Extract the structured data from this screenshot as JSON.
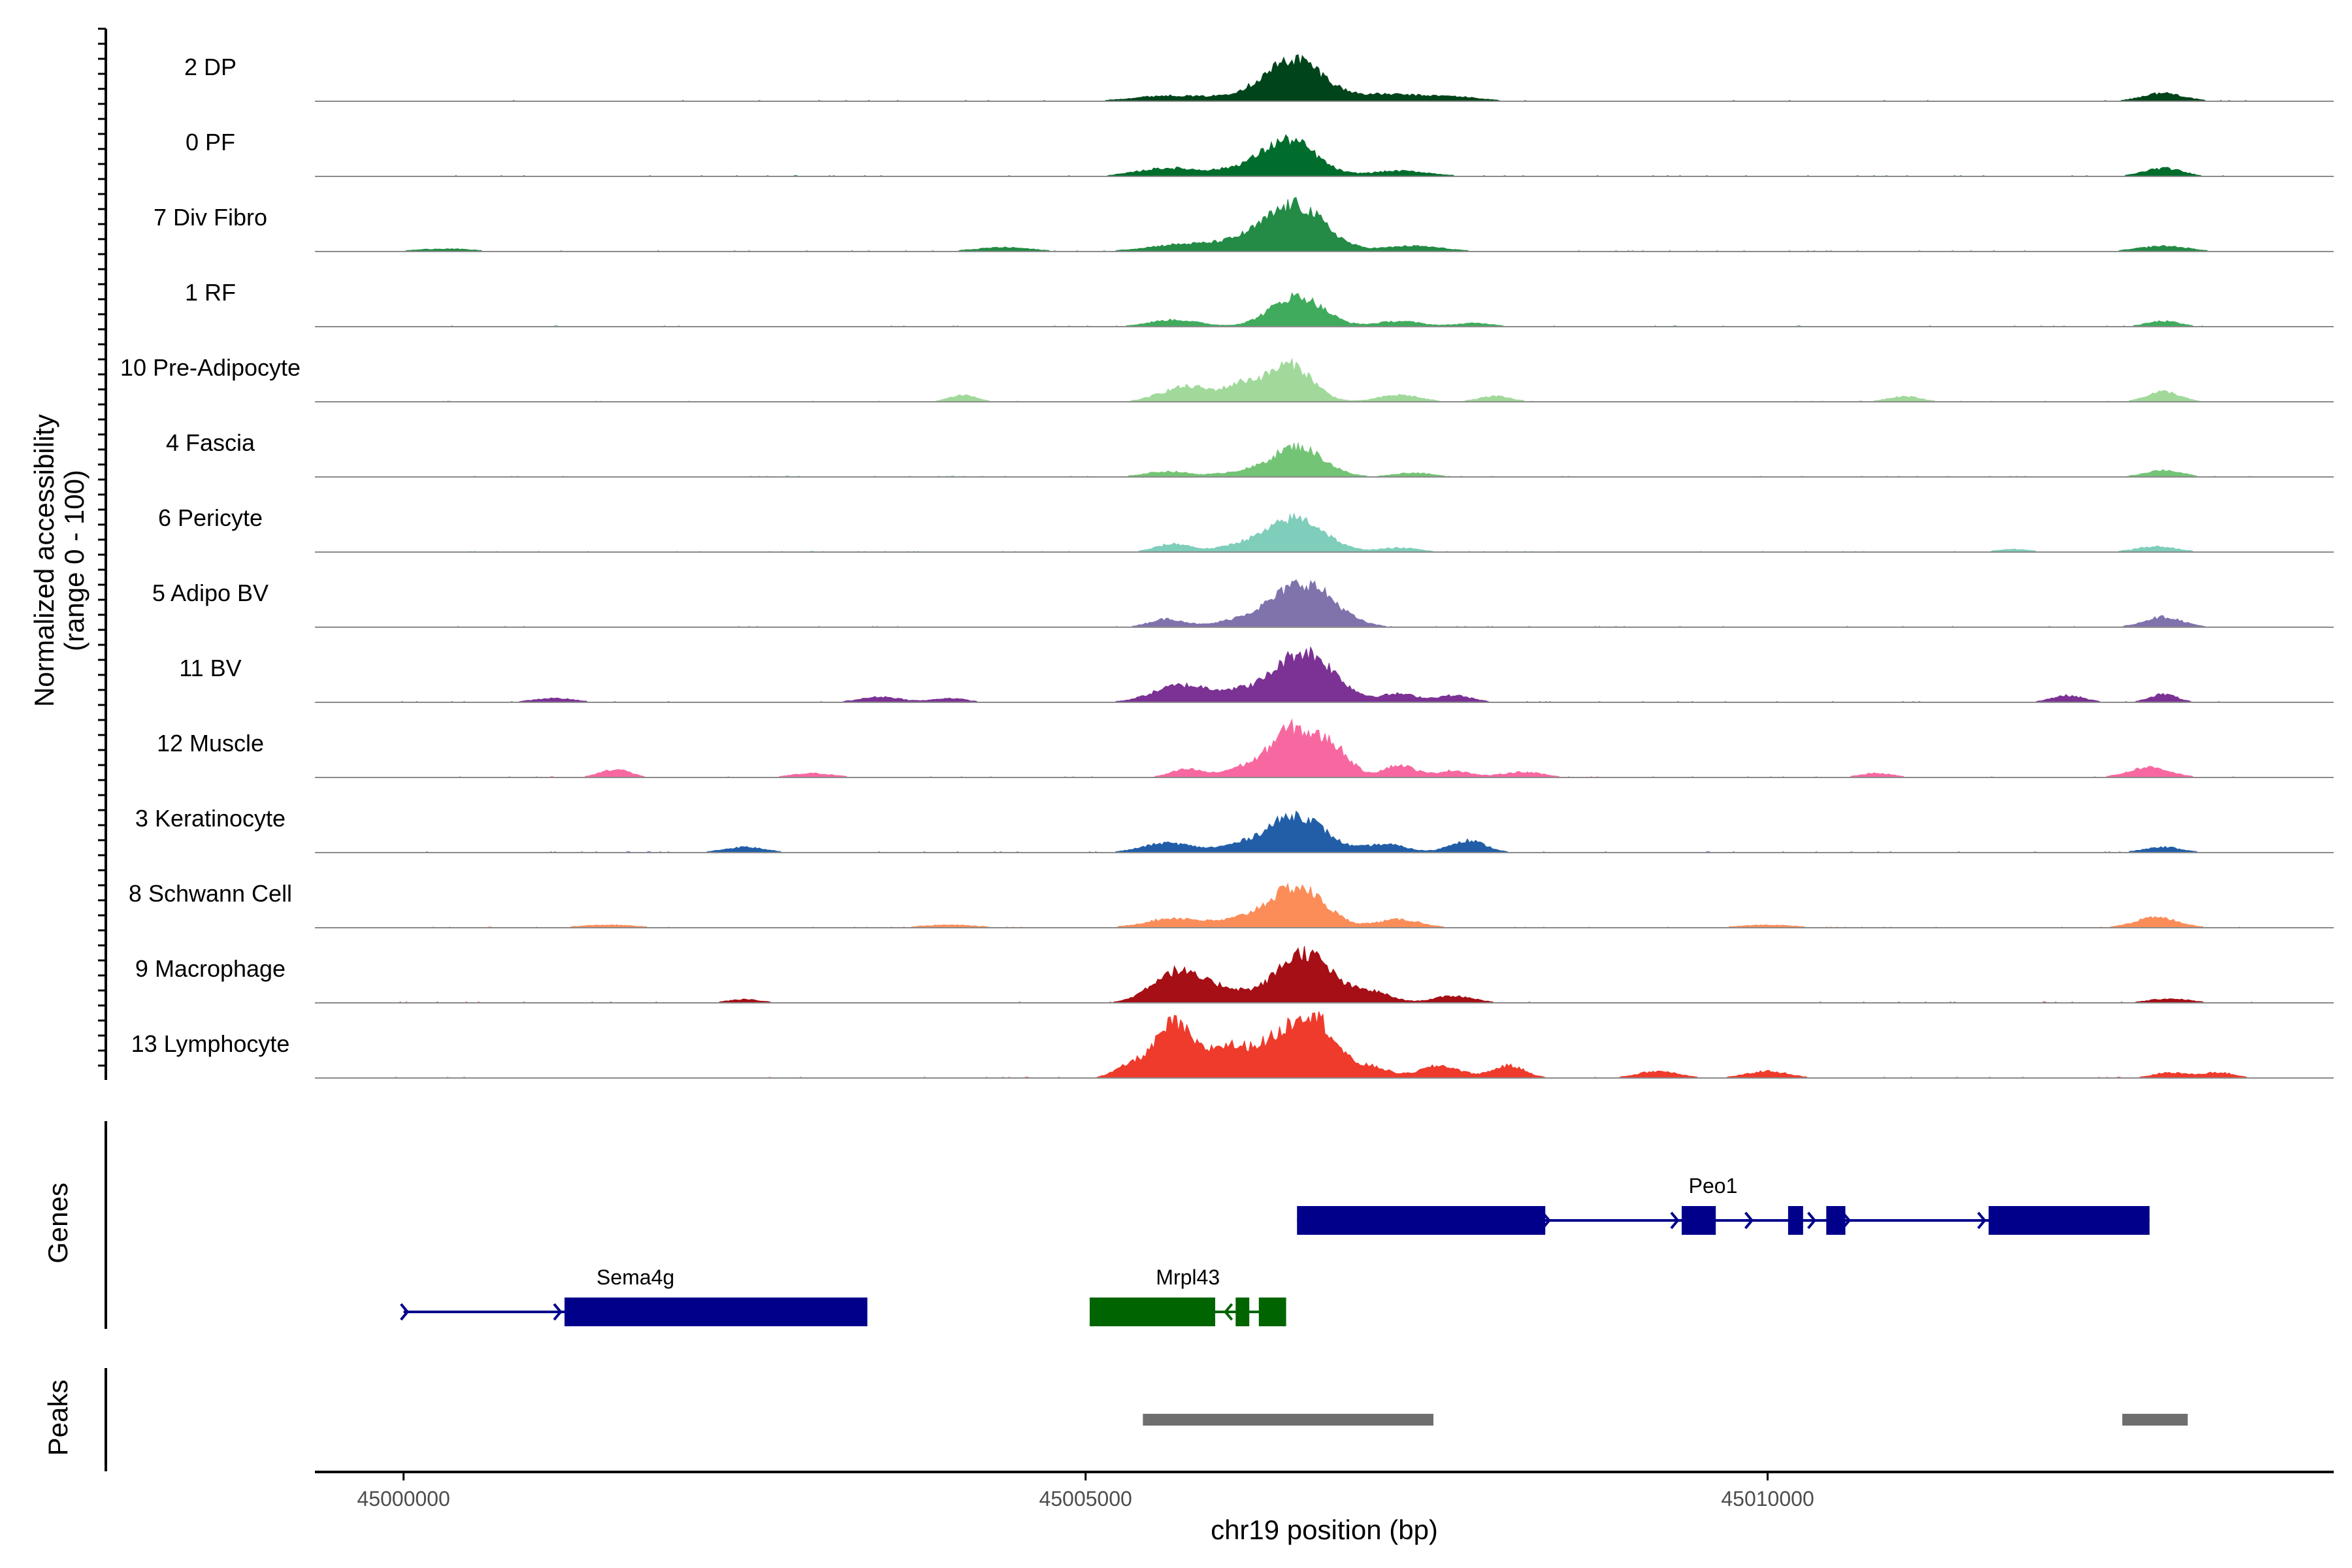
{
  "chart_data": {
    "type": "area",
    "title": "",
    "chromosome": "chr19",
    "xlabel": "chr19 position (bp)",
    "ylabel_line1": "Normalized accessibility",
    "ylabel_line2": "(range 0 - 100)",
    "xlim": [
      44999350,
      45014150
    ],
    "x_ticks": [
      45000000,
      45005000,
      45010000
    ],
    "x_tick_labels": [
      "45000000",
      "45005000",
      "45010000"
    ],
    "y_range": [
      0,
      100
    ],
    "panels": {
      "genes": "Genes",
      "peaks": "Peaks"
    },
    "tracks": [
      {
        "name": "2 DP",
        "color": "#00441b",
        "peaks": [
          [
            45006550,
            55,
            200
          ],
          [
            45006300,
            12,
            250
          ],
          [
            45005600,
            8,
            250
          ],
          [
            45007200,
            10,
            250
          ],
          [
            45007700,
            6,
            200
          ],
          [
            45012900,
            12,
            150
          ]
        ]
      },
      {
        "name": "0 PF",
        "color": "#006d2c",
        "peaks": [
          [
            45006500,
            52,
            190
          ],
          [
            45006150,
            10,
            200
          ],
          [
            45005600,
            12,
            220
          ],
          [
            45007300,
            8,
            220
          ],
          [
            45012900,
            12,
            140
          ]
        ]
      },
      {
        "name": "7 Div Fibro",
        "color": "#238b45",
        "peaks": [
          [
            45006550,
            65,
            210
          ],
          [
            45006200,
            14,
            220
          ],
          [
            45005700,
            10,
            250
          ],
          [
            45007400,
            8,
            220
          ],
          [
            45004400,
            6,
            200
          ],
          [
            45000300,
            4,
            200
          ],
          [
            45012900,
            8,
            180
          ]
        ]
      },
      {
        "name": "1 RF",
        "color": "#41ab5d",
        "peaks": [
          [
            45006550,
            45,
            190
          ],
          [
            45005650,
            10,
            180
          ],
          [
            45007300,
            8,
            160
          ],
          [
            45007850,
            5,
            140
          ],
          [
            45012900,
            8,
            120
          ]
        ]
      },
      {
        "name": "10 Pre-Adipocyte",
        "color": "#a1d99b",
        "peaks": [
          [
            45006500,
            55,
            160
          ],
          [
            45006150,
            25,
            130
          ],
          [
            45005800,
            18,
            140
          ],
          [
            45005600,
            10,
            140
          ],
          [
            45007300,
            10,
            150
          ],
          [
            45008000,
            8,
            120
          ],
          [
            45004100,
            10,
            100
          ],
          [
            45012900,
            15,
            120
          ],
          [
            45011000,
            8,
            120
          ]
        ]
      },
      {
        "name": "4 Fascia",
        "color": "#74c476",
        "peaks": [
          [
            45006550,
            45,
            190
          ],
          [
            45005600,
            8,
            160
          ],
          [
            45006100,
            6,
            150
          ],
          [
            45007400,
            6,
            140
          ],
          [
            45012900,
            10,
            130
          ]
        ]
      },
      {
        "name": "6 Pericyte",
        "color": "#7fcdbb",
        "peaks": [
          [
            45006550,
            50,
            200
          ],
          [
            45005650,
            12,
            130
          ],
          [
            45006150,
            10,
            160
          ],
          [
            45007300,
            6,
            150
          ],
          [
            45012850,
            8,
            150
          ],
          [
            45011800,
            4,
            120
          ]
        ]
      },
      {
        "name": "5 Adipo BV",
        "color": "#8073ac",
        "peaks": [
          [
            45006600,
            65,
            220
          ],
          [
            45005600,
            12,
            130
          ],
          [
            45006150,
            10,
            180
          ],
          [
            45012900,
            15,
            140
          ]
        ]
      },
      {
        "name": "11 BV",
        "color": "#7b3294",
        "peaks": [
          [
            45006600,
            75,
            220
          ],
          [
            45005700,
            25,
            200
          ],
          [
            45006100,
            12,
            160
          ],
          [
            45007300,
            12,
            130
          ],
          [
            45007700,
            10,
            130
          ],
          [
            45001100,
            6,
            150
          ],
          [
            45003500,
            8,
            150
          ],
          [
            45004000,
            6,
            120
          ],
          [
            45012200,
            10,
            120
          ],
          [
            45012900,
            12,
            100
          ]
        ]
      },
      {
        "name": "12 Muscle",
        "color": "#f768a1",
        "peaks": [
          [
            45006500,
            70,
            150
          ],
          [
            45006800,
            45,
            130
          ],
          [
            45005750,
            12,
            120
          ],
          [
            45006150,
            14,
            130
          ],
          [
            45007300,
            18,
            120
          ],
          [
            45001550,
            12,
            110
          ],
          [
            45007700,
            10,
            120
          ],
          [
            45008200,
            8,
            150
          ],
          [
            45003000,
            6,
            150
          ],
          [
            45012800,
            15,
            150
          ],
          [
            45010800,
            6,
            120
          ]
        ]
      },
      {
        "name": "3 Keratinocyte",
        "color": "#225ea8",
        "peaks": [
          [
            45006550,
            55,
            200
          ],
          [
            45005600,
            14,
            180
          ],
          [
            45006150,
            10,
            180
          ],
          [
            45007200,
            12,
            150
          ],
          [
            45007800,
            18,
            130
          ],
          [
            45002500,
            8,
            150
          ],
          [
            45012900,
            8,
            140
          ]
        ]
      },
      {
        "name": "8 Schwann Cell",
        "color": "#fc8d59",
        "peaks": [
          [
            45006550,
            60,
            200
          ],
          [
            45005650,
            14,
            200
          ],
          [
            45006150,
            10,
            180
          ],
          [
            45007300,
            12,
            160
          ],
          [
            45012850,
            15,
            160
          ],
          [
            45001500,
            4,
            200
          ],
          [
            45004000,
            4,
            200
          ],
          [
            45010000,
            4,
            200
          ]
        ]
      },
      {
        "name": "9 Macrophage",
        "color": "#a50f15",
        "peaks": [
          [
            45006600,
            75,
            200
          ],
          [
            45005650,
            45,
            170
          ],
          [
            45006000,
            20,
            170
          ],
          [
            45007100,
            15,
            140
          ],
          [
            45007700,
            10,
            150
          ],
          [
            45002500,
            5,
            120
          ],
          [
            45012950,
            6,
            150
          ]
        ]
      },
      {
        "name": "13 Lymphocyte",
        "color": "#ef3b2c",
        "peaks": [
          [
            45006650,
            95,
            170
          ],
          [
            45006300,
            40,
            160
          ],
          [
            45005650,
            80,
            130
          ],
          [
            45006000,
            40,
            130
          ],
          [
            45005350,
            20,
            120
          ],
          [
            45007100,
            15,
            130
          ],
          [
            45007600,
            18,
            150
          ],
          [
            45008100,
            18,
            120
          ],
          [
            45009200,
            10,
            150
          ],
          [
            45010000,
            10,
            150
          ],
          [
            45012950,
            8,
            120
          ],
          [
            45013300,
            8,
            120
          ]
        ]
      }
    ],
    "genes": [
      {
        "name": "Mrpl43",
        "strand": "-",
        "color": "#006400",
        "row": 2,
        "start": 45005030,
        "end": 45006470,
        "exons": [
          [
            45005030,
            45005950
          ],
          [
            45006100,
            45006200
          ],
          [
            45006270,
            45006470
          ]
        ]
      },
      {
        "name": "Sema4g",
        "strand": "+",
        "color": "#00008b",
        "row": 2,
        "start": 45000000,
        "end": 45003400,
        "exons": [
          [
            45001180,
            45003400
          ]
        ]
      },
      {
        "name": "Peo1",
        "strand": "+",
        "color": "#00008b",
        "row": 1,
        "start": 45006550,
        "end": 45012800,
        "exons": [
          [
            45006550,
            45008370
          ],
          [
            45009370,
            45009620
          ],
          [
            45010150,
            45010260
          ],
          [
            45010430,
            45010570
          ],
          [
            45011620,
            45012800
          ]
        ]
      }
    ],
    "peak_regions": [
      [
        45005420,
        45007550
      ],
      [
        45012600,
        45013080
      ]
    ]
  }
}
